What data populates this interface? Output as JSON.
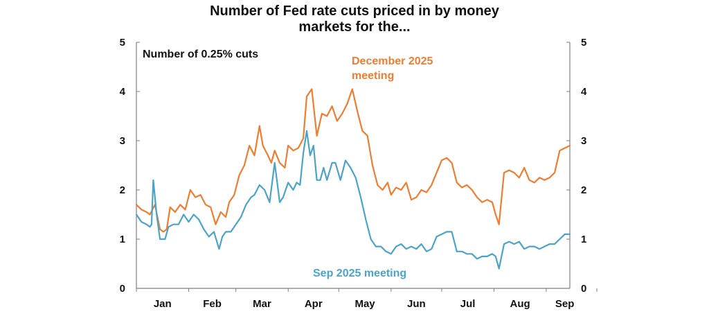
{
  "chart_data": {
    "type": "line",
    "title_lines": [
      "Number of Fed rate cuts priced in by money",
      "markets for the..."
    ],
    "ylabel": "Number of 0.25% cuts",
    "ylim": [
      0,
      5
    ],
    "y_ticks": [
      "0",
      "1",
      "2",
      "3",
      "4",
      "5"
    ],
    "x_ticks": [
      "Jan",
      "Feb",
      "Mar",
      "Apr",
      "May",
      "Jun",
      "Jul",
      "Aug",
      "Sep"
    ],
    "x_unit": "day of year 2025",
    "xlim": [
      1,
      258
    ],
    "colors": {
      "dec": "#ED7D31",
      "sep": "#4BA3C9",
      "axis": "#7f7f7f"
    },
    "series": [
      {
        "name": "December 2025 meeting",
        "label_lines": [
          "December 2025",
          "meeting"
        ],
        "x": [
          1,
          4,
          7,
          9,
          12,
          15,
          17,
          19,
          21,
          24,
          27,
          30,
          33,
          36,
          39,
          42,
          45,
          48,
          51,
          54,
          56,
          59,
          62,
          65,
          68,
          71,
          74,
          76,
          79,
          81,
          83,
          86,
          89,
          91,
          94,
          97,
          100,
          102,
          105,
          108,
          111,
          114,
          117,
          120,
          123,
          126,
          129,
          132,
          135,
          138,
          141,
          144,
          147,
          150,
          152,
          155,
          158,
          161,
          164,
          167,
          170,
          173,
          176,
          179,
          182,
          185,
          188,
          191,
          194,
          197,
          200,
          203,
          206,
          209,
          212,
          214,
          216,
          219,
          222,
          225,
          228,
          231,
          234,
          237,
          240,
          243,
          246,
          249,
          252,
          255,
          258
        ],
        "values": [
          1.7,
          1.6,
          1.55,
          1.5,
          1.7,
          1.2,
          1.15,
          1.2,
          1.65,
          1.55,
          1.7,
          1.6,
          2.0,
          1.85,
          1.9,
          1.7,
          1.65,
          1.3,
          1.55,
          1.45,
          1.75,
          1.9,
          2.3,
          2.5,
          2.9,
          2.7,
          3.3,
          2.9,
          2.7,
          2.55,
          2.8,
          2.55,
          2.45,
          2.9,
          2.8,
          2.85,
          3.05,
          3.9,
          4.05,
          3.1,
          3.55,
          3.5,
          3.7,
          3.4,
          3.55,
          3.75,
          4.05,
          3.6,
          3.2,
          3.1,
          2.5,
          2.1,
          2.0,
          2.15,
          1.9,
          2.05,
          2.0,
          2.15,
          1.8,
          1.85,
          2.0,
          1.95,
          2.1,
          2.35,
          2.6,
          2.65,
          2.55,
          2.15,
          2.05,
          2.1,
          2.0,
          1.85,
          1.75,
          1.8,
          1.75,
          1.5,
          1.3,
          2.35,
          2.4,
          2.35,
          2.25,
          2.45,
          2.2,
          2.15,
          2.25,
          2.2,
          2.25,
          2.35,
          2.8,
          2.85,
          2.9
        ]
      },
      {
        "name": "Sep 2025 meeting",
        "label_lines": [
          "Sep 2025 meeting"
        ],
        "x": [
          1,
          4,
          7,
          9,
          10,
          11,
          13,
          15,
          18,
          20,
          23,
          26,
          29,
          32,
          35,
          38,
          41,
          44,
          47,
          50,
          52,
          54,
          57,
          60,
          63,
          66,
          69,
          71,
          74,
          77,
          80,
          83,
          86,
          88,
          91,
          94,
          96,
          98,
          100,
          102,
          104,
          106,
          108,
          110,
          112,
          114,
          117,
          119,
          122,
          125,
          128,
          131,
          134,
          137,
          140,
          143,
          146,
          149,
          152,
          155,
          158,
          161,
          164,
          167,
          170,
          173,
          176,
          179,
          182,
          185,
          188,
          191,
          194,
          197,
          200,
          203,
          206,
          209,
          212,
          214,
          216,
          219,
          222,
          225,
          228,
          231,
          234,
          237,
          240,
          243,
          246,
          249,
          252,
          255,
          258
        ],
        "values": [
          1.5,
          1.35,
          1.3,
          1.25,
          1.3,
          2.2,
          1.5,
          1.0,
          1.0,
          1.25,
          1.3,
          1.3,
          1.5,
          1.35,
          1.5,
          1.4,
          1.2,
          1.05,
          1.15,
          0.8,
          1.05,
          1.15,
          1.15,
          1.3,
          1.45,
          1.7,
          1.85,
          1.9,
          2.1,
          2.0,
          1.75,
          2.55,
          1.75,
          1.85,
          2.15,
          2.0,
          2.15,
          2.1,
          2.75,
          3.2,
          2.7,
          2.9,
          2.2,
          2.2,
          2.45,
          2.2,
          2.55,
          2.55,
          2.2,
          2.6,
          2.45,
          2.25,
          1.85,
          1.4,
          1.0,
          0.85,
          0.85,
          0.75,
          0.7,
          0.85,
          0.9,
          0.8,
          0.85,
          0.8,
          0.9,
          0.75,
          0.8,
          1.05,
          1.1,
          1.15,
          1.15,
          0.75,
          0.75,
          0.7,
          0.7,
          0.6,
          0.65,
          0.65,
          0.7,
          0.65,
          0.4,
          0.9,
          0.95,
          0.9,
          0.95,
          0.8,
          0.85,
          0.85,
          0.8,
          0.85,
          0.9,
          0.9,
          1.0,
          1.1,
          1.1
        ]
      }
    ]
  }
}
